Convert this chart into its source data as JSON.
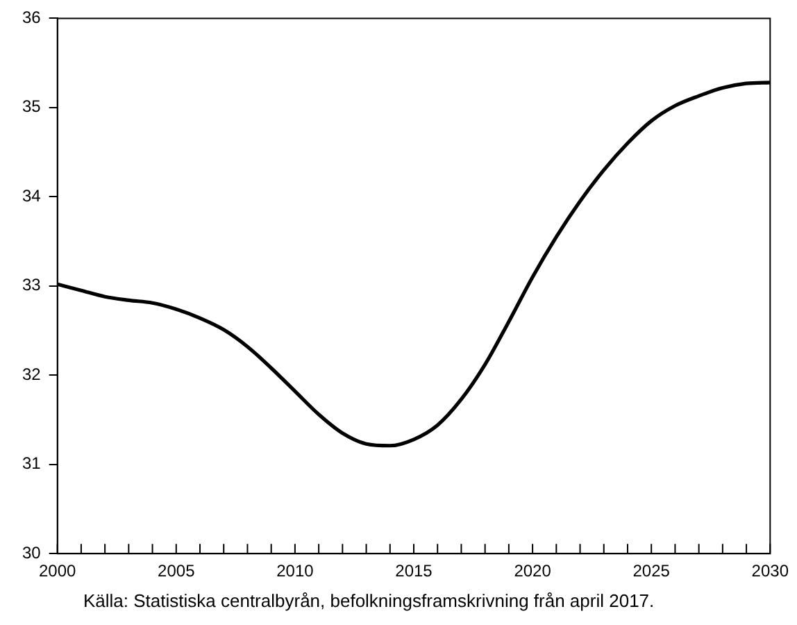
{
  "chart_data": {
    "type": "line",
    "x": [
      2000,
      2001,
      2002,
      2003,
      2004,
      2005,
      2006,
      2007,
      2008,
      2009,
      2010,
      2011,
      2012,
      2013,
      2014,
      2015,
      2016,
      2017,
      2018,
      2019,
      2020,
      2021,
      2022,
      2023,
      2024,
      2025,
      2026,
      2027,
      2028,
      2029,
      2030
    ],
    "series": [
      {
        "color": "#000000",
        "values": [
          33.02,
          32.95,
          32.88,
          32.84,
          32.81,
          32.74,
          32.64,
          32.51,
          32.32,
          32.08,
          31.82,
          31.56,
          31.35,
          31.23,
          31.21,
          31.28,
          31.44,
          31.73,
          32.12,
          32.6,
          33.1,
          33.55,
          33.95,
          34.3,
          34.6,
          34.85,
          35.02,
          35.13,
          35.22,
          35.27,
          35.28
        ]
      }
    ],
    "xlim": [
      2000,
      2030
    ],
    "xticks": [
      2000,
      {
        "value": 2001,
        "label": null
      },
      {
        "value": 2002,
        "label": null
      },
      {
        "value": 2003,
        "label": null
      },
      {
        "value": 2004,
        "label": null
      },
      2005,
      {
        "value": 2006,
        "label": null
      },
      {
        "value": 2007,
        "label": null
      },
      {
        "value": 2008,
        "label": null
      },
      {
        "value": 2009,
        "label": null
      },
      2010,
      {
        "value": 2011,
        "label": null
      },
      {
        "value": 2012,
        "label": null
      },
      {
        "value": 2013,
        "label": null
      },
      {
        "value": 2014,
        "label": null
      },
      2015,
      {
        "value": 2016,
        "label": null
      },
      {
        "value": 2017,
        "label": null
      },
      {
        "value": 2018,
        "label": null
      },
      {
        "value": 2019,
        "label": null
      },
      2020,
      {
        "value": 2021,
        "label": null
      },
      {
        "value": 2022,
        "label": null
      },
      {
        "value": 2023,
        "label": null
      },
      {
        "value": 2024,
        "label": null
      },
      2025,
      {
        "value": 2026,
        "label": null
      },
      {
        "value": 2027,
        "label": null
      },
      {
        "value": 2028,
        "label": null
      },
      {
        "value": 2029,
        "label": null
      },
      2030
    ],
    "ylim": [
      30,
      36
    ],
    "yticks": [
      30,
      31,
      32,
      33,
      34,
      35,
      36
    ],
    "grid": false,
    "legend": false,
    "marker": "none",
    "line_style": "solid",
    "annotations": [
      "Källa: Statistiska centralbyrån, befolkningsframskrivning från april 2017."
    ]
  }
}
